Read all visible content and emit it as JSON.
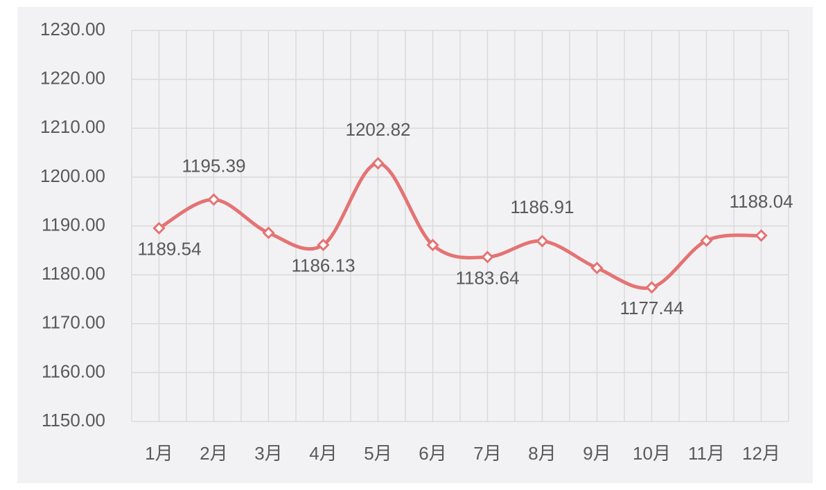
{
  "chart_data": {
    "type": "line",
    "categories": [
      "1月",
      "2月",
      "3月",
      "4月",
      "5月",
      "6月",
      "7月",
      "8月",
      "9月",
      "10月",
      "11月",
      "12月"
    ],
    "series": [
      {
        "color": "#e57373",
        "values": [
          1189.54,
          1195.39,
          1188.6,
          1186.13,
          1202.82,
          1186.1,
          1183.64,
          1186.91,
          1181.4,
          1177.44,
          1187.0,
          1188.04
        ],
        "value_labels": [
          "1189.54",
          "1195.39",
          null,
          "1186.13",
          "1202.82",
          null,
          "1183.64",
          "1186.91",
          null,
          "1177.44",
          null,
          "1188.04"
        ]
      }
    ],
    "ylim": [
      1150,
      1230
    ],
    "yticks": [
      {
        "value": 1150,
        "label": "1150.00"
      },
      {
        "value": 1160,
        "label": "1160.00"
      },
      {
        "value": 1170,
        "label": "1170.00"
      },
      {
        "value": 1180,
        "label": "1180.00"
      },
      {
        "value": 1190,
        "label": "1190.00"
      },
      {
        "value": 1200,
        "label": "1200.00"
      },
      {
        "value": 1210,
        "label": "1210.00"
      },
      {
        "value": 1220,
        "label": "1220.00"
      },
      {
        "value": 1230,
        "label": "1230.00"
      }
    ],
    "grid": true,
    "smooth": true
  }
}
